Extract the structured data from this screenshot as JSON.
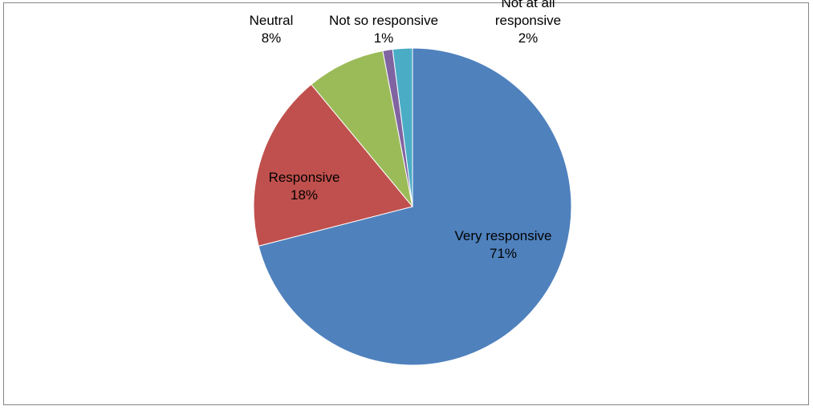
{
  "chart_data": {
    "type": "pie",
    "slices": [
      {
        "name": "Very responsive",
        "value": 71,
        "label": "71%",
        "color": "#4F81BD"
      },
      {
        "name": "Responsive",
        "value": 18,
        "label": "18%",
        "color": "#C0504D"
      },
      {
        "name": "Neutral",
        "value": 8,
        "label": "8%",
        "color": "#9BBB59"
      },
      {
        "name": "Not so responsive",
        "value": 1,
        "label": "1%",
        "color": "#8064A2"
      },
      {
        "name": "Not at all responsive",
        "value": 2,
        "label": "2%",
        "color": "#4BACC6"
      }
    ],
    "legend": "none",
    "data_labels": "category-and-percent"
  }
}
